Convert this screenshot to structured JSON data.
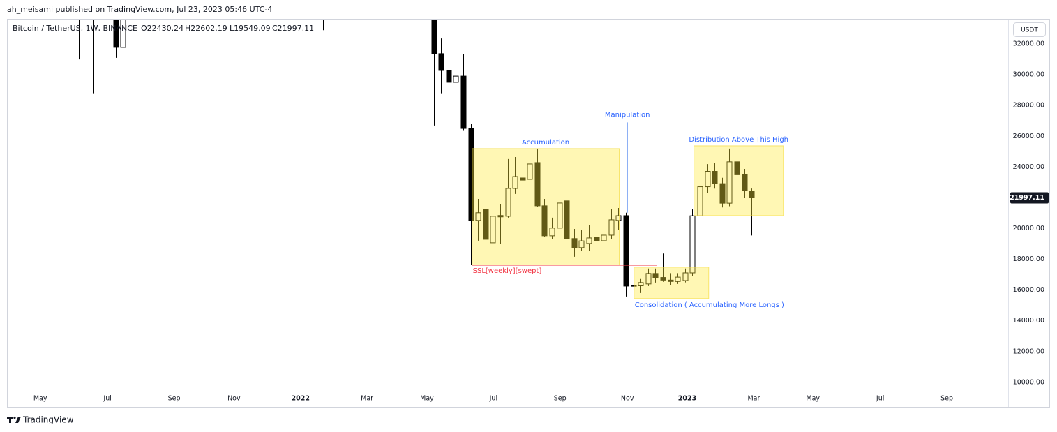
{
  "publisher_line": "ah_meisami published on TradingView.com, Jul 23, 2023 05:46 UTC-4",
  "footer_brand": "TradingView",
  "chart_data": {
    "type": "candlestick",
    "title": "Bitcoin / TetherUS, 1W, BINANCE",
    "ohlc_legend": [
      "O22430.24",
      "H22602.19",
      "L19549.09",
      "C21997.11"
    ],
    "currency_button": "USDT",
    "up_color": "#ffffff",
    "down_color": "#000000",
    "grid": false,
    "xlim": [
      0,
      135.4
    ],
    "ylim": [
      9450,
      33590
    ],
    "xticks": [
      {
        "value": 4.5,
        "label": "May"
      },
      {
        "value": 13.6,
        "label": "Jul"
      },
      {
        "value": 22.6,
        "label": "Sep"
      },
      {
        "value": 30.7,
        "label": "Nov"
      },
      {
        "value": 39.7,
        "label": "2022"
      },
      {
        "value": 48.7,
        "label": "Mar"
      },
      {
        "value": 56.8,
        "label": "May"
      },
      {
        "value": 65.8,
        "label": "Jul"
      },
      {
        "value": 74.8,
        "label": "Sep"
      },
      {
        "value": 83.9,
        "label": "Nov"
      },
      {
        "value": 92,
        "label": "2023"
      },
      {
        "value": 101,
        "label": "Mar"
      },
      {
        "value": 109,
        "label": "May"
      },
      {
        "value": 118.1,
        "label": "Jul"
      },
      {
        "value": 127.1,
        "label": "Sep"
      }
    ],
    "yticks": [
      {
        "value": 32000,
        "label": "32000.00"
      },
      {
        "value": 30000,
        "label": "30000.00"
      },
      {
        "value": 28000,
        "label": "28000.00"
      },
      {
        "value": 26000,
        "label": "26000.00"
      },
      {
        "value": 24000,
        "label": "24000.00"
      },
      {
        "value": 20000,
        "label": "20000.00"
      },
      {
        "value": 18000,
        "label": "18000.00"
      },
      {
        "value": 16000,
        "label": "16000.00"
      },
      {
        "value": 14000,
        "label": "14000.00"
      },
      {
        "value": 12000,
        "label": "12000.00"
      },
      {
        "value": 10000,
        "label": "10000.00"
      }
    ],
    "last_price": 21997.11,
    "series": [
      {
        "x": [
          6.7,
          9.7,
          11.7,
          14.7,
          15.7,
          42.7,
          57.7,
          58.7,
          59.7,
          60.7,
          61.7,
          62.7,
          63.7,
          64.7,
          65.7,
          66.7,
          67.7,
          68.7,
          69.7,
          70.7,
          71.7,
          72.7,
          73.7,
          74.7,
          75.7,
          76.7,
          77.7,
          78.7,
          79.7,
          80.7,
          81.7,
          82.7,
          83.7,
          84.7,
          85.7,
          86.7,
          87.7,
          88.7,
          89.7,
          90.7,
          91.7,
          92.7,
          93.7,
          94.7,
          95.7,
          96.7,
          97.7,
          98.7,
          99.7,
          100.7
        ],
        "open": [
          37000,
          36000,
          35500,
          34300,
          31780,
          46000,
          34060,
          31370,
          30280,
          29510,
          29910,
          26510,
          20530,
          21250,
          19075,
          20850,
          20800,
          22610,
          23290,
          23200,
          24290,
          21480,
          19530,
          20030,
          21800,
          19350,
          18760,
          19030,
          19440,
          19210,
          19570,
          20530,
          20840,
          16320,
          16280,
          16400,
          17080,
          16820,
          16650,
          16560,
          16620,
          17120,
          20830,
          22720,
          23720,
          22920,
          21650,
          24340,
          23500,
          22430.24
        ],
        "high": [
          40000,
          39000,
          36000,
          34600,
          34500,
          48000,
          34240,
          32360,
          30780,
          32140,
          31320,
          26830,
          21930,
          22390,
          21710,
          21570,
          24520,
          24650,
          23700,
          25020,
          25200,
          21930,
          20710,
          21710,
          22790,
          19980,
          19890,
          20250,
          19890,
          20030,
          21250,
          21340,
          21030,
          16720,
          16720,
          17400,
          17400,
          18380,
          17100,
          17100,
          17400,
          21250,
          23250,
          24190,
          24260,
          23300,
          25200,
          25200,
          23880,
          22602.19
        ],
        "low": [
          30000,
          31000,
          28800,
          31100,
          29280,
          32900,
          26700,
          28800,
          28050,
          29400,
          26400,
          17620,
          19210,
          18620,
          18900,
          18980,
          20710,
          22250,
          22250,
          22980,
          21430,
          19440,
          19300,
          18530,
          19210,
          18170,
          18530,
          18530,
          18260,
          18760,
          19300,
          19890,
          15580,
          15900,
          15810,
          16260,
          16490,
          16540,
          16300,
          16400,
          16500,
          16900,
          20560,
          22310,
          22600,
          21370,
          21450,
          22730,
          22000,
          19549.09
        ],
        "close": [
          35500,
          35500,
          34700,
          31780,
          34200,
          42000,
          31370,
          30280,
          29510,
          29910,
          26510,
          20530,
          21030,
          19300,
          20800,
          20760,
          22610,
          23380,
          23150,
          24200,
          21480,
          19530,
          20030,
          21660,
          19350,
          18760,
          19200,
          19390,
          19210,
          19570,
          20570,
          20840,
          16260,
          16250,
          16490,
          17080,
          16820,
          16650,
          16560,
          16840,
          17120,
          20830,
          22720,
          23720,
          22920,
          21650,
          24340,
          23500,
          22450,
          21997.11
        ]
      }
    ],
    "annotations": [
      {
        "type": "box",
        "label": "Accumulation",
        "x": [
          62.9,
          82.8
        ],
        "y": [
          17620,
          25200
        ],
        "label_position": "top"
      },
      {
        "type": "vline",
        "label": "Manipulation",
        "x": 83.9,
        "y": [
          21030,
          26900
        ],
        "label_position": "top"
      },
      {
        "type": "hline",
        "label": "SSL[weekly][swept]",
        "x": [
          62.9,
          87.9
        ],
        "y": 17620,
        "color": "#f23645"
      },
      {
        "type": "box",
        "label": "Consolidation ( Accumulating More Longs )",
        "x": [
          84.8,
          94.9
        ],
        "y": [
          15450,
          17490
        ],
        "label_position": "bottom-left"
      },
      {
        "type": "box",
        "label": "Distribution Above This High",
        "x": [
          92.9,
          105
        ],
        "y": [
          20840,
          25380
        ],
        "label_position": "top"
      }
    ]
  }
}
